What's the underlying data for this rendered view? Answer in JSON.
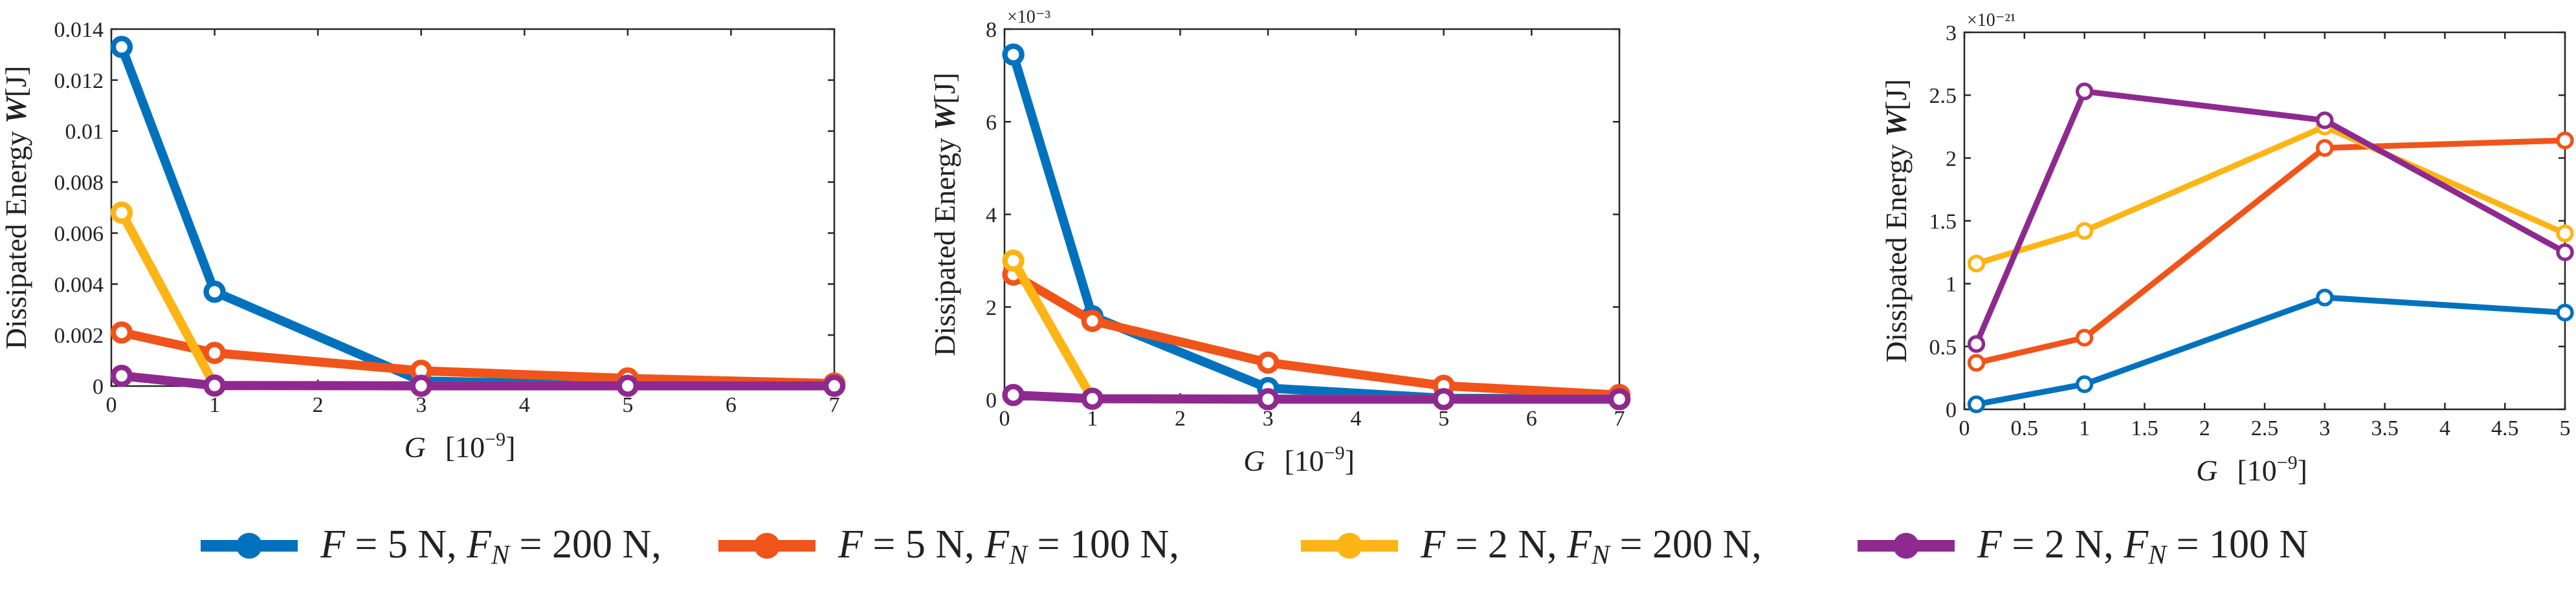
{
  "chart_data": [
    {
      "type": "line",
      "title": "",
      "xlabel": "G",
      "xlabel_unit": "[10",
      "xlabel_unit_exp": "−9",
      "xlabel_unit_close": "]",
      "ylabel_text": "Dissipated Energy",
      "ylabel_symbol": "W",
      "ylabel_unit": "[J]",
      "y_exponent": "",
      "xlim": [
        0,
        7
      ],
      "ylim": [
        0,
        0.014
      ],
      "xticks": [
        0,
        1,
        2,
        3,
        4,
        5,
        6,
        7
      ],
      "xtick_labels": [
        "0",
        "1",
        "2",
        "3",
        "4",
        "5",
        "6",
        "7"
      ],
      "yticks": [
        0,
        0.002,
        0.004,
        0.006,
        0.008,
        0.01,
        0.012,
        0.014
      ],
      "ytick_labels": [
        "0",
        "0.002",
        "0.004",
        "0.006",
        "0.008",
        "0.01",
        "0.012",
        "0.014"
      ],
      "series": [
        {
          "key": "s1",
          "name": "F = 5 N, FN = 200 N",
          "x": [
            0.1,
            1,
            3,
            5,
            7
          ],
          "y": [
            0.0133,
            0.0037,
            0.0002,
            3e-05,
            2e-05
          ]
        },
        {
          "key": "s2",
          "name": "F = 5 N, FN = 100 N",
          "x": [
            0.1,
            1,
            3,
            5,
            7
          ],
          "y": [
            0.0021,
            0.0013,
            0.0006,
            0.0003,
            0.0001
          ]
        },
        {
          "key": "s3",
          "name": "F = 2 N, FN = 200 N",
          "x": [
            0.1,
            1,
            3,
            5,
            7
          ],
          "y": [
            0.0068,
            2e-05,
            1e-05,
            1e-05,
            1e-05
          ]
        },
        {
          "key": "s4",
          "name": "F = 2 N, FN = 100 N",
          "x": [
            0.1,
            1,
            3,
            5,
            7
          ],
          "y": [
            0.0004,
            2e-05,
            1e-05,
            1e-05,
            1e-05
          ]
        }
      ]
    },
    {
      "type": "line",
      "title": "",
      "xlabel": "G",
      "xlabel_unit": "[10",
      "xlabel_unit_exp": "−9",
      "xlabel_unit_close": "]",
      "ylabel_text": "Dissipated Energy",
      "ylabel_symbol": "W",
      "ylabel_unit": "[J]",
      "y_exponent": "×10⁻³",
      "xlim": [
        0,
        7
      ],
      "ylim": [
        0,
        8
      ],
      "xticks": [
        0,
        1,
        2,
        3,
        4,
        5,
        6,
        7
      ],
      "xtick_labels": [
        "0",
        "1",
        "2",
        "3",
        "4",
        "5",
        "6",
        "7"
      ],
      "yticks": [
        0,
        2,
        4,
        6,
        8
      ],
      "ytick_labels": [
        "0",
        "2",
        "4",
        "6",
        "8"
      ],
      "series": [
        {
          "key": "s1",
          "name": "F = 5 N, FN = 200 N",
          "x": [
            0.1,
            1,
            3,
            5,
            7
          ],
          "y": [
            7.45,
            1.8,
            0.25,
            0.03,
            0.02
          ]
        },
        {
          "key": "s2",
          "name": "F = 5 N, FN = 100 N",
          "x": [
            0.1,
            1,
            3,
            5,
            7
          ],
          "y": [
            2.7,
            1.7,
            0.8,
            0.3,
            0.1
          ]
        },
        {
          "key": "s3",
          "name": "F = 2 N, FN = 200 N",
          "x": [
            0.1,
            1,
            3,
            5,
            7
          ],
          "y": [
            3.0,
            0.02,
            0.01,
            0.01,
            0.01
          ]
        },
        {
          "key": "s4",
          "name": "F = 2 N, FN = 100 N",
          "x": [
            0.1,
            1,
            3,
            5,
            7
          ],
          "y": [
            0.1,
            0.02,
            0.01,
            0.01,
            0.01
          ]
        }
      ]
    },
    {
      "type": "line",
      "title": "",
      "xlabel": "G",
      "xlabel_unit": "[10",
      "xlabel_unit_exp": "−9",
      "xlabel_unit_close": "]",
      "ylabel_text": "Dissipated Energy",
      "ylabel_symbol": "W",
      "ylabel_unit": "[J]",
      "y_exponent": "×10⁻²¹",
      "xlim": [
        0,
        5
      ],
      "ylim": [
        0,
        3
      ],
      "xticks": [
        0,
        0.5,
        1,
        1.5,
        2,
        2.5,
        3,
        3.5,
        4,
        4.5,
        5
      ],
      "xtick_labels": [
        "0",
        "0.5",
        "1",
        "1.5",
        "2",
        "2.5",
        "3",
        "3.5",
        "4",
        "4.5",
        "5"
      ],
      "yticks": [
        0,
        0.5,
        1,
        1.5,
        2,
        2.5,
        3
      ],
      "ytick_labels": [
        "0",
        "0.5",
        "1",
        "1.5",
        "2",
        "2.5",
        "3"
      ],
      "series": [
        {
          "key": "s1",
          "name": "F = 5 N, FN = 200 N",
          "x": [
            0.1,
            1,
            3,
            5
          ],
          "y": [
            0.04,
            0.2,
            0.89,
            0.77
          ]
        },
        {
          "key": "s2",
          "name": "F = 5 N, FN = 100 N",
          "x": [
            0.1,
            1,
            3,
            5
          ],
          "y": [
            0.37,
            0.57,
            2.08,
            2.14
          ]
        },
        {
          "key": "s3",
          "name": "F = 2 N, FN = 200 N",
          "x": [
            0.1,
            1,
            3,
            5
          ],
          "y": [
            1.16,
            1.42,
            2.25,
            1.4
          ]
        },
        {
          "key": "s4",
          "name": "F = 2 N, FN = 100 N",
          "x": [
            0.1,
            1,
            3,
            5
          ],
          "y": [
            0.52,
            2.53,
            2.3,
            1.25
          ]
        }
      ]
    }
  ],
  "legend": {
    "items": [
      {
        "key": "s1",
        "F": "F",
        "F_val": " = 5 N, ",
        "FN": "F",
        "FN_sub": "N",
        "FN_val": " = 200 N,"
      },
      {
        "key": "s2",
        "F": "F",
        "F_val": " = 5 N, ",
        "FN": "F",
        "FN_sub": "N",
        "FN_val": " = 100 N,"
      },
      {
        "key": "s3",
        "F": "F",
        "F_val": " = 2 N, ",
        "FN": "F",
        "FN_sub": "N",
        "FN_val": " = 200 N,"
      },
      {
        "key": "s4",
        "F": "F",
        "F_val": " = 2 N, ",
        "FN": "F",
        "FN_sub": "N",
        "FN_val": " = 100 N"
      }
    ]
  },
  "colors": {
    "s1": "#0072BD",
    "s2": "#F0541A",
    "s3": "#FDB515",
    "s4": "#8E2A8F"
  }
}
